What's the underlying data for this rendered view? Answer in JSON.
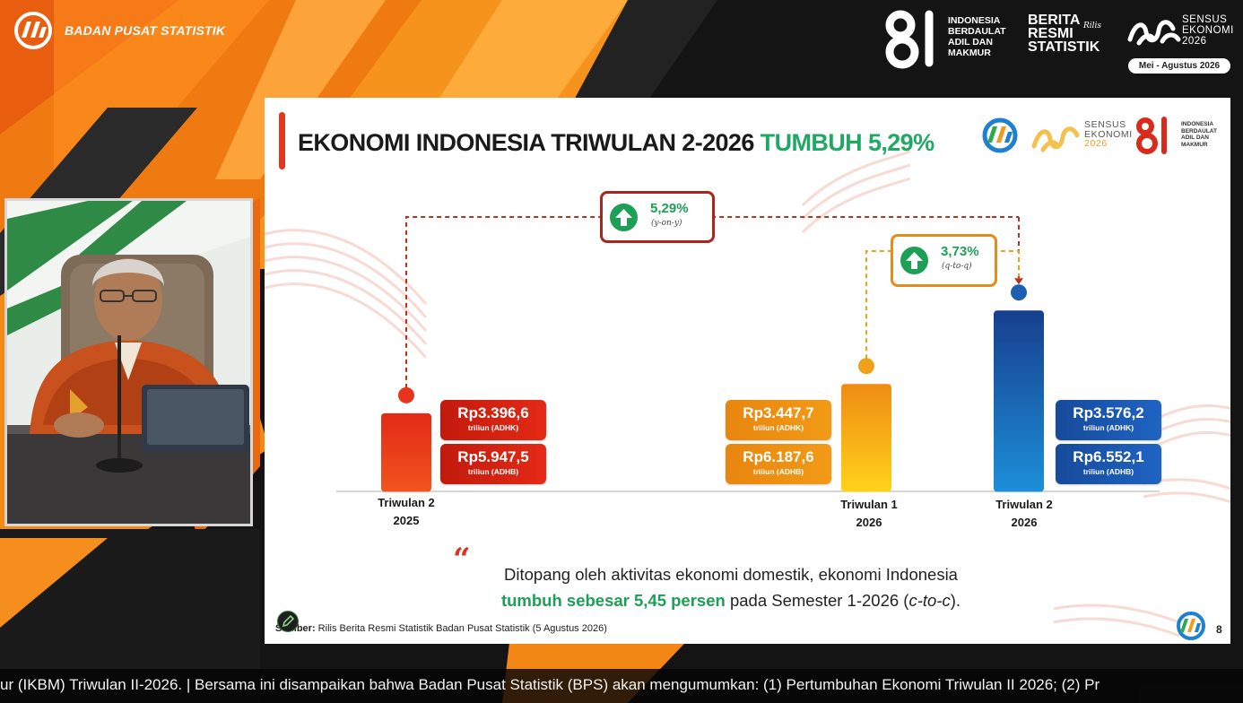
{
  "header": {
    "org_name": "BADAN PUSAT STATISTIK",
    "hut_lines": [
      "INDONESIA",
      "BERDAULAT",
      "ADIL DAN",
      "MAKMUR"
    ],
    "brs_lines": [
      "BERITA",
      "RESMI",
      "STATISTIK"
    ],
    "brs_script": "Rilis",
    "se_lines": [
      "SENSUS",
      "EKONOMI",
      "2026"
    ],
    "se_period": "Mei - Agustus 2026"
  },
  "slide": {
    "title_main": "EKONOMI INDONESIA TRIWULAN 2-2026",
    "title_highlight": "TUMBUH 5,29%",
    "logo_se_lines": [
      "SENSUS",
      "EKONOMI",
      "2026"
    ],
    "logo_hut_lines": [
      "INDONESIA",
      "BERDAULAT",
      "ADIL DAN",
      "MAKMUR"
    ],
    "growth_yoy": {
      "value": "5,29%",
      "label": "(y-on-y)"
    },
    "growth_qtq": {
      "value": "3,73%",
      "label": "(q-to-q)"
    },
    "quote_line1": "Ditopang oleh aktivitas ekonomi domestik, ekonomi Indonesia",
    "quote_green": "tumbuh sebesar 5,45 persen",
    "quote_line2_rest": " pada Semester 1-2026 (",
    "quote_italic": "c-to-c",
    "quote_end": ").",
    "source_label": "Sumber:",
    "source_text": " Rilis Berita Resmi Statistik Badan Pusat Statistik (5 Agustus 2026)",
    "page_number": "8",
    "colors": {
      "accent_red": "#e8341c",
      "growth_green": "#1d9f55",
      "blue": "#1f64c4",
      "orange": "#f29a16"
    }
  },
  "chart_data": {
    "type": "bar",
    "categories": [
      "Triwulan 2 2025",
      "Triwulan 1 2026",
      "Triwulan 2 2026"
    ],
    "category_lines": [
      [
        "Triwulan 2",
        "2025"
      ],
      [
        "Triwulan 1",
        "2026"
      ],
      [
        "Triwulan 2",
        "2026"
      ]
    ],
    "series": [
      {
        "name": "ADHK",
        "values": [
          3396.6,
          3447.7,
          3576.2
        ]
      },
      {
        "name": "ADHB",
        "values": [
          5947.5,
          6187.6,
          6552.1
        ]
      }
    ],
    "value_labels": {
      "adhk": [
        "Rp3.396,6",
        "Rp3.447,7",
        "Rp3.576,2"
      ],
      "adhb": [
        "Rp5.947,5",
        "Rp6.187,6",
        "Rp6.552,1"
      ]
    },
    "units": {
      "adhk": "triliun (ADHK)",
      "adhb": "triliun (ADHB)"
    },
    "growth": {
      "yoy_pct": 5.29,
      "qtq_pct": 3.73
    },
    "bar_colors": [
      "#e8341c",
      "#f5a81a",
      "#1f64c4"
    ]
  },
  "ticker": {
    "text": "ur (IKBM) Triwulan II-2026.  |   Bersama ini disampaikan bahwa Badan Pusat Statistik (BPS) akan mengumumkan: (1) Pertumbuhan Ekonomi  Triwulan II 2026; (2) Pr"
  }
}
